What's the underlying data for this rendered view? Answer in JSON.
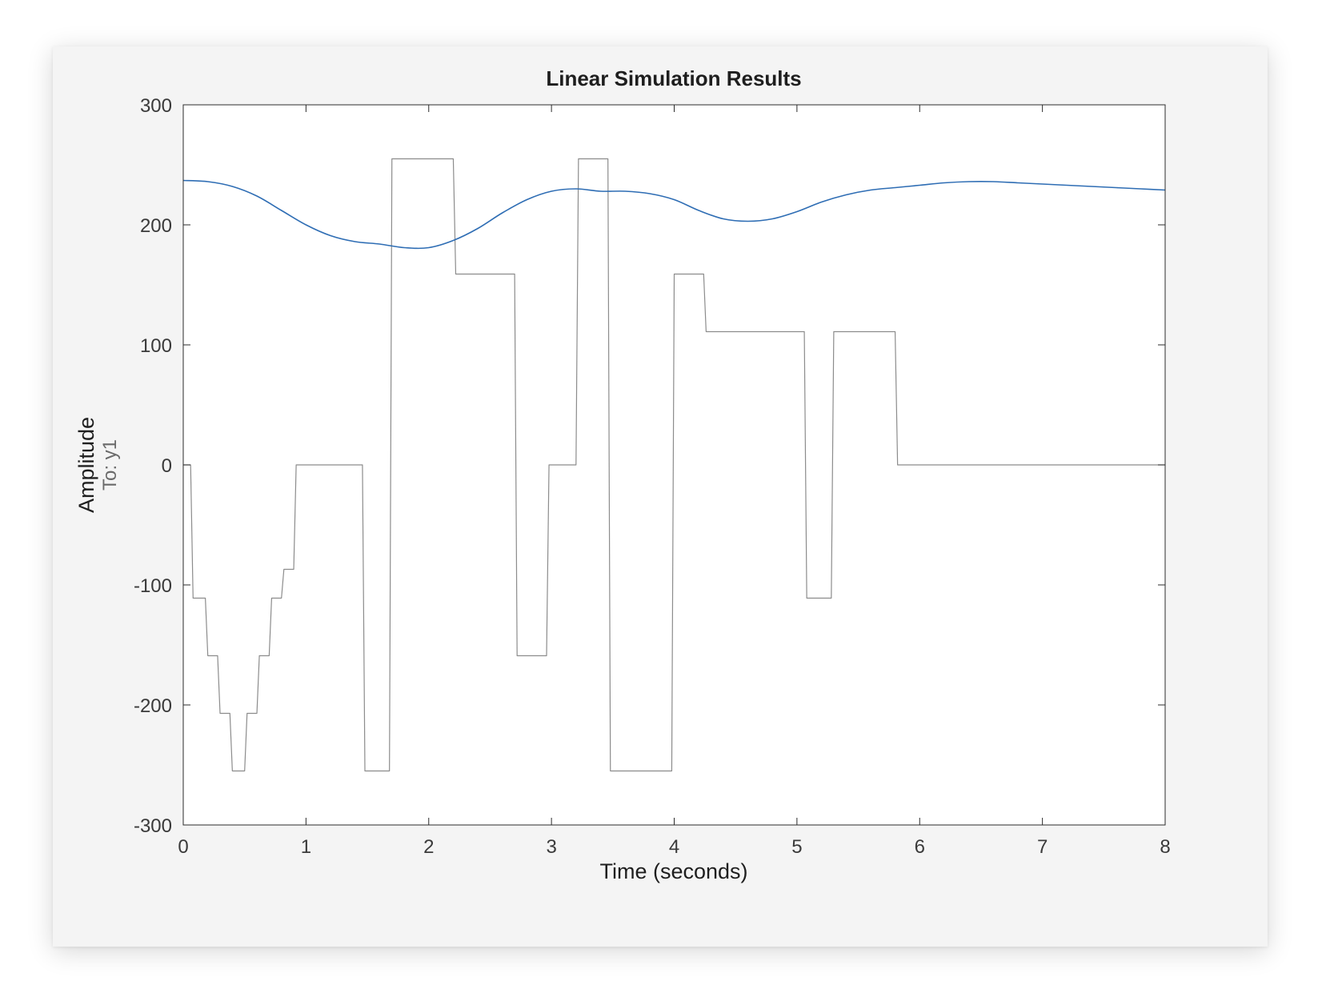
{
  "chart_data": {
    "type": "line",
    "title": "Linear Simulation Results",
    "xlabel": "Time (seconds)",
    "ylabel": "Amplitude",
    "ylabel_sub": "To: y1",
    "xlim": [
      0,
      8
    ],
    "ylim": [
      -300,
      300
    ],
    "xticks": [
      "0",
      "1",
      "2",
      "3",
      "4",
      "5",
      "6",
      "7",
      "8"
    ],
    "yticks": [
      "-300",
      "-200",
      "-100",
      "0",
      "100",
      "200",
      "300"
    ],
    "grid": false,
    "series": [
      {
        "role": "input",
        "color": "#8c8c8c",
        "points": [
          [
            0.0,
            0
          ],
          [
            0.06,
            0
          ],
          [
            0.08,
            -111
          ],
          [
            0.18,
            -111
          ],
          [
            0.2,
            -159
          ],
          [
            0.28,
            -159
          ],
          [
            0.3,
            -207
          ],
          [
            0.38,
            -207
          ],
          [
            0.4,
            -255
          ],
          [
            0.5,
            -255
          ],
          [
            0.52,
            -207
          ],
          [
            0.6,
            -207
          ],
          [
            0.62,
            -159
          ],
          [
            0.7,
            -159
          ],
          [
            0.72,
            -111
          ],
          [
            0.8,
            -111
          ],
          [
            0.82,
            -87
          ],
          [
            0.9,
            -87
          ],
          [
            0.92,
            0
          ],
          [
            1.46,
            0
          ],
          [
            1.48,
            -255
          ],
          [
            1.68,
            -255
          ],
          [
            1.7,
            255
          ],
          [
            2.2,
            255
          ],
          [
            2.22,
            159
          ],
          [
            2.7,
            159
          ],
          [
            2.72,
            -159
          ],
          [
            2.96,
            -159
          ],
          [
            2.98,
            0
          ],
          [
            3.2,
            0
          ],
          [
            3.22,
            255
          ],
          [
            3.46,
            255
          ],
          [
            3.48,
            -255
          ],
          [
            3.98,
            -255
          ],
          [
            4.0,
            159
          ],
          [
            4.24,
            159
          ],
          [
            4.26,
            111
          ],
          [
            5.06,
            111
          ],
          [
            5.08,
            -111
          ],
          [
            5.28,
            -111
          ],
          [
            5.3,
            111
          ],
          [
            5.8,
            111
          ],
          [
            5.82,
            0
          ],
          [
            8.0,
            0
          ]
        ]
      },
      {
        "role": "response",
        "color": "#2e6db4",
        "points": [
          [
            0.0,
            237
          ],
          [
            0.2,
            236
          ],
          [
            0.4,
            232
          ],
          [
            0.6,
            224
          ],
          [
            0.8,
            212
          ],
          [
            1.0,
            200
          ],
          [
            1.2,
            191
          ],
          [
            1.4,
            186
          ],
          [
            1.6,
            184
          ],
          [
            1.8,
            181
          ],
          [
            2.0,
            181
          ],
          [
            2.2,
            187
          ],
          [
            2.4,
            197
          ],
          [
            2.6,
            210
          ],
          [
            2.8,
            221
          ],
          [
            3.0,
            228
          ],
          [
            3.2,
            230
          ],
          [
            3.4,
            228
          ],
          [
            3.6,
            228
          ],
          [
            3.8,
            226
          ],
          [
            4.0,
            221
          ],
          [
            4.2,
            212
          ],
          [
            4.4,
            205
          ],
          [
            4.6,
            203
          ],
          [
            4.8,
            205
          ],
          [
            5.0,
            211
          ],
          [
            5.2,
            219
          ],
          [
            5.4,
            225
          ],
          [
            5.6,
            229
          ],
          [
            5.8,
            231
          ],
          [
            6.0,
            233
          ],
          [
            6.2,
            235
          ],
          [
            6.4,
            236
          ],
          [
            6.6,
            236
          ],
          [
            6.8,
            235
          ],
          [
            7.0,
            234
          ],
          [
            7.2,
            233
          ],
          [
            7.4,
            232
          ],
          [
            7.6,
            231
          ],
          [
            7.8,
            230
          ],
          [
            8.0,
            229
          ]
        ]
      }
    ]
  },
  "colors": {
    "figure_background": "#f4f4f4",
    "axes_background": "#ffffff",
    "axes_edge": "#2b2b2b",
    "response_line": "#2e6db4",
    "input_line": "#8c8c8c"
  }
}
